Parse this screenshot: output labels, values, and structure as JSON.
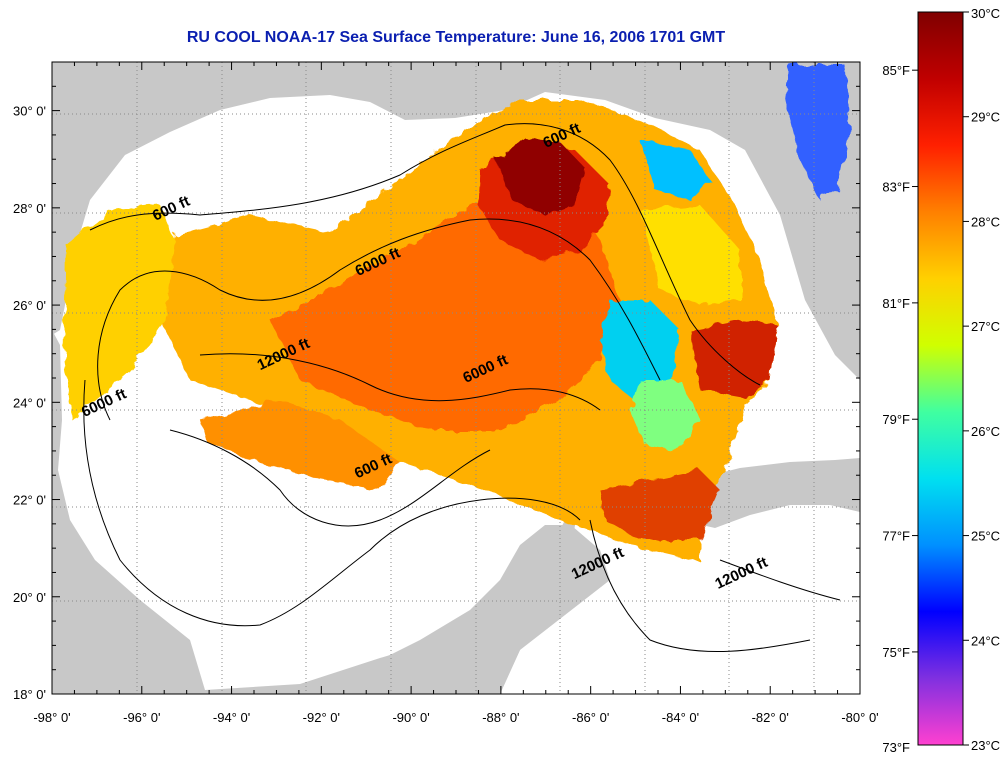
{
  "title": "RU COOL  NOAA-17  Sea Surface Temperature:  June 16, 2006 1701 GMT",
  "map": {
    "lon_range": [
      -98,
      -80
    ],
    "lat_range": [
      18,
      31
    ],
    "lon_ticks": [
      "-98° 0'",
      "-96° 0'",
      "-94° 0'",
      "-92° 0'",
      "-90° 0'",
      "-88° 0'",
      "-86° 0'",
      "-84° 0'",
      "-82° 0'",
      "-80° 0'"
    ],
    "lat_ticks": [
      "30° 0'",
      "28° 0'",
      "26° 0'",
      "24° 0'",
      "22° 0'",
      "20° 0'",
      "18° 0'"
    ],
    "colors": {
      "land": "#c8c8c8",
      "nodata": "#ffffff",
      "grid": "#888888"
    },
    "contour_labels": [
      {
        "text": "600 ft",
        "lon": -86.6,
        "lat": 29.4
      },
      {
        "text": "600 ft",
        "lon": -95.3,
        "lat": 27.9
      },
      {
        "text": "6000 ft",
        "lon": -90.7,
        "lat": 26.8
      },
      {
        "text": "12000 ft",
        "lon": -92.8,
        "lat": 24.9
      },
      {
        "text": "6000 ft",
        "lon": -88.3,
        "lat": 24.6
      },
      {
        "text": "6000 ft",
        "lon": -96.8,
        "lat": 23.9
      },
      {
        "text": "600 ft",
        "lon": -90.8,
        "lat": 22.6
      },
      {
        "text": "12000 ft",
        "lon": -85.8,
        "lat": 20.6
      },
      {
        "text": "12000 ft",
        "lon": -82.6,
        "lat": 20.4
      }
    ]
  },
  "colorbar": {
    "range_c": [
      23,
      30
    ],
    "celsius_ticks": [
      "30°C",
      "29°C",
      "28°C",
      "27°C",
      "26°C",
      "25°C",
      "24°C",
      "23°C"
    ],
    "fahrenheit_ticks": [
      "85°F",
      "83°F",
      "81°F",
      "79°F",
      "77°F",
      "75°F",
      "73°F"
    ],
    "colors": [
      "#ff40d0",
      "#8030e0",
      "#0000ff",
      "#0090ff",
      "#00e0f0",
      "#40ffa0",
      "#d0ff00",
      "#ffd000",
      "#ff8000",
      "#ff2000",
      "#c00000",
      "#800000"
    ]
  }
}
